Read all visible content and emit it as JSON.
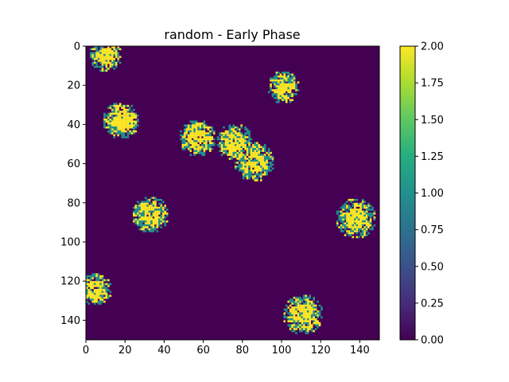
{
  "chart_data": {
    "type": "heatmap",
    "title": "random - Early Phase",
    "xlabel": "",
    "ylabel": "",
    "grid": false,
    "xlim": [
      0,
      150
    ],
    "ylim": [
      150,
      0
    ],
    "x_ticks": [
      0,
      20,
      40,
      60,
      80,
      100,
      120,
      140
    ],
    "y_ticks": [
      0,
      20,
      40,
      60,
      80,
      100,
      120,
      140
    ],
    "grid_size": [
      150,
      150
    ],
    "background_value": 0,
    "value_range": [
      0,
      2
    ],
    "colormap": "viridis",
    "colorbar": {
      "ticks": [
        "0.00",
        "0.25",
        "0.50",
        "0.75",
        "1.00",
        "1.25",
        "1.50",
        "1.75",
        "2.00"
      ],
      "min": 0,
      "max": 2
    },
    "clusters": [
      {
        "x": 10,
        "y": 5,
        "radius": 8
      },
      {
        "x": 101,
        "y": 21,
        "radius": 8
      },
      {
        "x": 18,
        "y": 38,
        "radius": 9
      },
      {
        "x": 57,
        "y": 47,
        "radius": 9
      },
      {
        "x": 76,
        "y": 49,
        "radius": 9
      },
      {
        "x": 86,
        "y": 59,
        "radius": 10
      },
      {
        "x": 33,
        "y": 86,
        "radius": 9
      },
      {
        "x": 138,
        "y": 88,
        "radius": 10
      },
      {
        "x": 5,
        "y": 124,
        "radius": 8
      },
      {
        "x": 111,
        "y": 137,
        "radius": 10
      }
    ]
  }
}
